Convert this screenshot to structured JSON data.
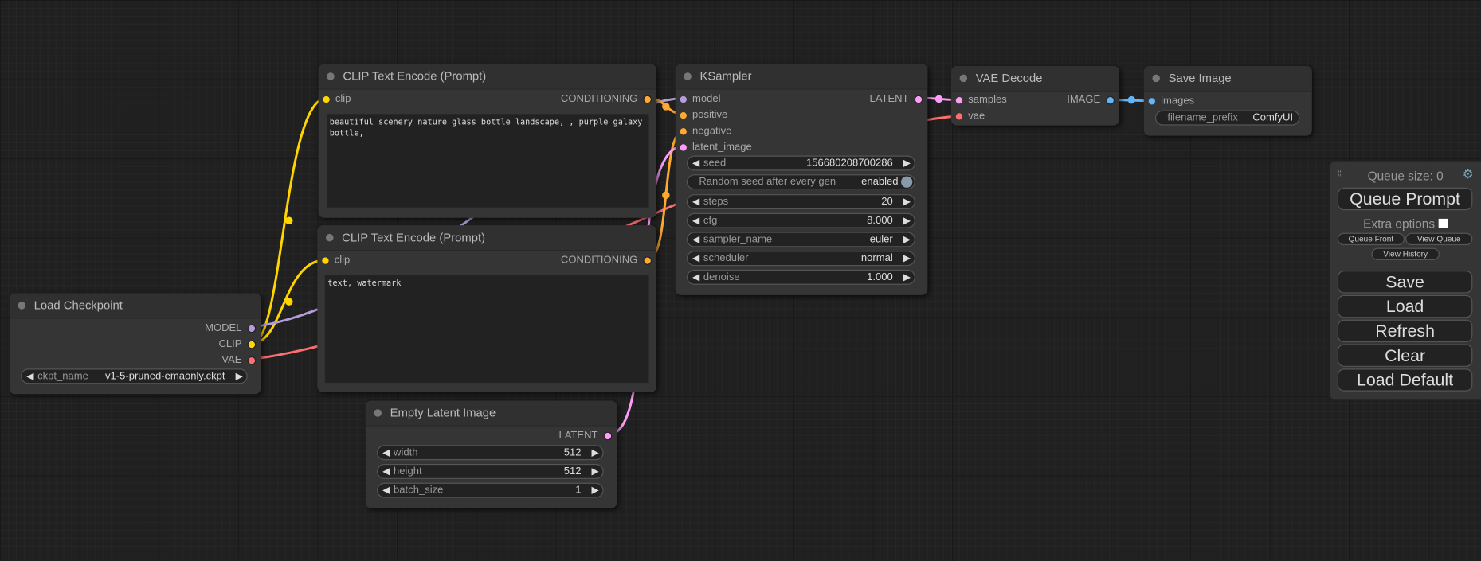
{
  "colors": {
    "clip": "#ffd500",
    "model": "#b39ddb",
    "vae": "#ff6e6e",
    "conditioning": "#ffa931",
    "latent": "#ff9cf9",
    "image": "#64b5f6"
  },
  "nodes": {
    "clip_pos": {
      "title": "CLIP Text Encode (Prompt)",
      "input": "clip",
      "output": "CONDITIONING",
      "text": "beautiful scenery nature glass bottle landscape, , purple galaxy bottle,"
    },
    "clip_neg": {
      "title": "CLIP Text Encode (Prompt)",
      "input": "clip",
      "output": "CONDITIONING",
      "text": "text, watermark"
    },
    "checkpoint": {
      "title": "Load Checkpoint",
      "outputs": [
        "MODEL",
        "CLIP",
        "VAE"
      ],
      "widget": {
        "label": "ckpt_name",
        "value": "v1-5-pruned-emaonly.ckpt"
      }
    },
    "latent": {
      "title": "Empty Latent Image",
      "output": "LATENT",
      "widgets": [
        {
          "label": "width",
          "value": "512"
        },
        {
          "label": "height",
          "value": "512"
        },
        {
          "label": "batch_size",
          "value": "1"
        }
      ]
    },
    "ksampler": {
      "title": "KSampler",
      "inputs": [
        "model",
        "positive",
        "negative",
        "latent_image"
      ],
      "output": "LATENT",
      "seed": {
        "label": "seed",
        "value": "156680208700286"
      },
      "random": {
        "label": "Random seed after every gen",
        "value": "enabled"
      },
      "widgets": [
        {
          "label": "steps",
          "value": "20"
        },
        {
          "label": "cfg",
          "value": "8.000"
        },
        {
          "label": "sampler_name",
          "value": "euler"
        },
        {
          "label": "scheduler",
          "value": "normal"
        },
        {
          "label": "denoise",
          "value": "1.000"
        }
      ]
    },
    "vae_decode": {
      "title": "VAE Decode",
      "inputs": [
        "samples",
        "vae"
      ],
      "output": "IMAGE"
    },
    "save": {
      "title": "Save Image",
      "input": "images",
      "widget": {
        "label": "filename_prefix",
        "value": "ComfyUI"
      }
    }
  },
  "panel": {
    "queue_size": "Queue size: 0",
    "queue_prompt": "Queue Prompt",
    "extra_options": "Extra options",
    "queue_front": "Queue Front",
    "view_queue": "View Queue",
    "view_history": "View History",
    "buttons": [
      "Save",
      "Load",
      "Refresh",
      "Clear",
      "Load Default"
    ]
  },
  "arrows": {
    "left": "◀",
    "right": "▶"
  }
}
